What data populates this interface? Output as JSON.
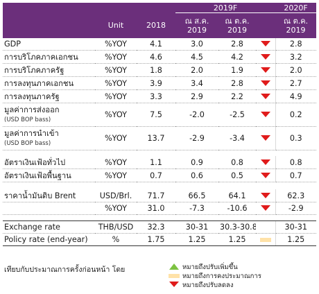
{
  "header": {
    "unit": "Unit",
    "y2018": "2018",
    "y2019f": "2019F",
    "y2020f": "2020F",
    "sub_aug": [
      "ณ ส.ค.",
      "2019"
    ],
    "sub_oct_a": [
      "ณ ต.ค.",
      "2019"
    ],
    "sub_oct_b": [
      "ณ ต.ค.",
      "2019"
    ]
  },
  "rows": [
    {
      "label": "GDP",
      "sub": "",
      "unit": "%YOY",
      "v2018": "4.1",
      "aug": "3.0",
      "oct": "2.8",
      "dir": "down",
      "v2020": "2.8"
    },
    {
      "label": "การบริโภคภาคเอกชน",
      "sub": "",
      "unit": "%YOY",
      "v2018": "4.6",
      "aug": "4.5",
      "oct": "4.2",
      "dir": "down",
      "v2020": "3.2"
    },
    {
      "label": "การบริโภคภาครัฐ",
      "sub": "",
      "unit": "%YOY",
      "v2018": "1.8",
      "aug": "2.0",
      "oct": "1.9",
      "dir": "down",
      "v2020": "2.0"
    },
    {
      "label": "การลงทุนภาคเอกชน",
      "sub": "",
      "unit": "%YOY",
      "v2018": "3.9",
      "aug": "3.4",
      "oct": "2.8",
      "dir": "down",
      "v2020": "2.7"
    },
    {
      "label": "การลงทุนภาครัฐ",
      "sub": "",
      "unit": "%YOY",
      "v2018": "3.3",
      "aug": "2.9",
      "oct": "2.2",
      "dir": "down",
      "v2020": "4.9"
    },
    {
      "label": "มูลค่าการส่งออก",
      "sub": "(USD BOP bass)",
      "unit": "%YOY",
      "v2018": "7.5",
      "aug": "-2.0",
      "oct": "-2.5",
      "dir": "down",
      "v2020": "0.2"
    },
    {
      "label": "มูลค่าการนำเข้า",
      "sub": "(USD BOP bass)",
      "unit": "%YOY",
      "v2018": "13.7",
      "aug": "-2.9",
      "oct": "-3.4",
      "dir": "down",
      "v2020": "0.3"
    },
    {
      "label": "อัตราเงินเฟ้อทั่วไป",
      "sub": "",
      "unit": "%YOY",
      "v2018": "1.1",
      "aug": "0.9",
      "oct": "0.8",
      "dir": "down",
      "v2020": "0.8"
    },
    {
      "label": "อัตราเงินเฟ้อพื้นฐาน",
      "sub": "",
      "unit": "%YOY",
      "v2018": "0.7",
      "aug": "0.6",
      "oct": "0.5",
      "dir": "down",
      "v2020": "0.7"
    },
    {
      "label": "ราคาน้ำมันดิบ Brent",
      "sub": "",
      "unit": "USD/Brl.",
      "v2018": "71.7",
      "aug": "66.5",
      "oct": "64.1",
      "dir": "down",
      "v2020": "62.3"
    },
    {
      "label": "",
      "sub": "",
      "unit": "%YOY",
      "v2018": "31.0",
      "aug": "-7.3",
      "oct": "-10.6",
      "dir": "down",
      "v2020": "-2.9"
    },
    {
      "label": "Exchange rate",
      "sub": "",
      "unit": "THB/USD",
      "v2018": "32.3",
      "aug": "30-31",
      "oct": "30.3-30.8",
      "dir": "none",
      "v2020": "30-31"
    },
    {
      "label": "Policy rate (end-year)",
      "sub": "",
      "unit": "%",
      "v2018": "1.75",
      "aug": "1.25",
      "oct": "1.25",
      "dir": "same",
      "v2020": "1.25"
    }
  ],
  "legend": {
    "note": "เทียบกับประมาณการครั้งก่อนหน้า โดย",
    "up": "หมายถึงปรับเพิ่มขึ้น",
    "same": "หมายถึงการคงประมาณการ",
    "down": "หมายถึงปรับลดลง"
  },
  "colors": {
    "header_bg": "#6b2f7b",
    "down": "#e01b1b",
    "up": "#7dc242",
    "same": "#ffe2a8"
  }
}
